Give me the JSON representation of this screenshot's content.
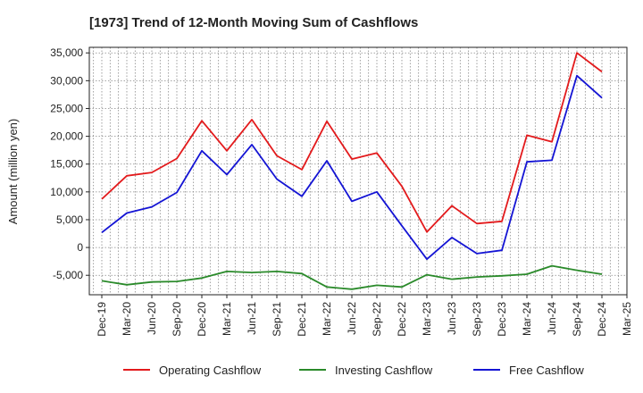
{
  "chart_data": {
    "type": "line",
    "title": "[1973]  Trend of 12-Month Moving Sum of Cashflows",
    "xlabel": "",
    "ylabel": "Amount (million yen)",
    "x_ticks": [
      "Dec-19",
      "Mar-20",
      "Jun-20",
      "Sep-20",
      "Dec-20",
      "Mar-21",
      "Jun-21",
      "Sep-21",
      "Dec-21",
      "Mar-22",
      "Jun-22",
      "Sep-22",
      "Dec-22",
      "Mar-23",
      "Jun-23",
      "Sep-23",
      "Dec-23",
      "Mar-24",
      "Jun-24",
      "Sep-24",
      "Dec-24",
      "Mar-25"
    ],
    "y_ticks": [
      35000,
      30000,
      25000,
      20000,
      15000,
      10000,
      5000,
      0,
      -5000
    ],
    "y_tick_labels": [
      "35,000",
      "30,000",
      "25,000",
      "20,000",
      "15,000",
      "10,000",
      "5,000",
      "0",
      "-5,000"
    ],
    "ylim": [
      -8500,
      36000
    ],
    "grid": true,
    "legend_position": "bottom",
    "categories": [
      "Dec-19",
      "Mar-20",
      "Jun-20",
      "Sep-20",
      "Dec-20",
      "Mar-21",
      "Jun-21",
      "Sep-21",
      "Dec-21",
      "Mar-22",
      "Jun-22",
      "Sep-22",
      "Dec-22",
      "Mar-23",
      "Jun-23",
      "Sep-23",
      "Dec-23",
      "Mar-24",
      "Jun-24",
      "Sep-24",
      "Dec-24"
    ],
    "series": [
      {
        "name": "Operating Cashflow",
        "color": "#e31a1c",
        "values": [
          8700,
          12900,
          13500,
          16000,
          22800,
          17400,
          23000,
          16500,
          14000,
          22700,
          15900,
          17000,
          11000,
          2800,
          7500,
          4300,
          4700,
          20200,
          19000,
          35000,
          31600
        ]
      },
      {
        "name": "Investing Cashflow",
        "color": "#2a8a2a",
        "values": [
          -6000,
          -6700,
          -6200,
          -6100,
          -5500,
          -4300,
          -4500,
          -4300,
          -4700,
          -7100,
          -7500,
          -6800,
          -7100,
          -4900,
          -5700,
          -5300,
          -5100,
          -4800,
          -3300,
          -4100,
          -4800
        ]
      },
      {
        "name": "Free Cashflow",
        "color": "#1414d4",
        "values": [
          2700,
          6200,
          7300,
          9900,
          17400,
          13100,
          18500,
          12300,
          9200,
          15600,
          8300,
          10000,
          3900,
          -2100,
          1800,
          -1100,
          -500,
          15400,
          15700,
          30900,
          26900
        ]
      }
    ]
  }
}
